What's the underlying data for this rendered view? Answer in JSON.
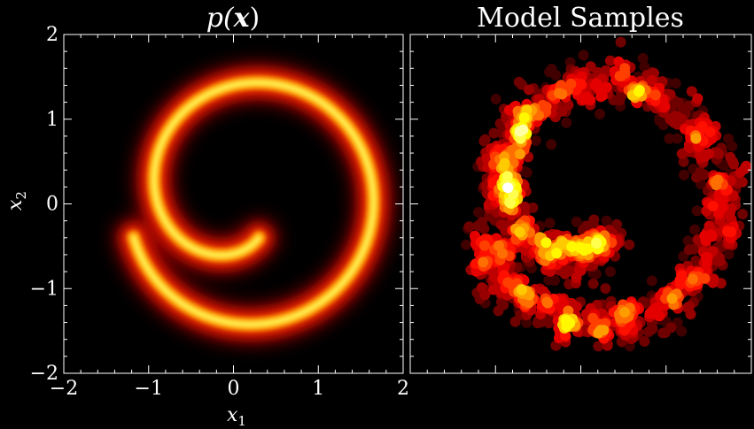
{
  "chart_data": [
    {
      "type": "heatmap",
      "title": "p(x)",
      "title_parts": {
        "fn": "p(",
        "var": "x",
        "close": ")"
      },
      "xlabel": "x1",
      "xlabel_parts": {
        "base": "x",
        "sub": "1"
      },
      "ylabel": "x2",
      "ylabel_parts": {
        "base": "x",
        "sub": "2"
      },
      "xlim": [
        -2,
        2
      ],
      "ylim": [
        -2,
        2
      ],
      "xticks": [
        -2,
        -1,
        0,
        1,
        2
      ],
      "yticks": [
        -2,
        -1,
        0,
        1,
        2
      ],
      "xtick_labels": [
        "−2",
        "−1",
        "0",
        "1",
        "2"
      ],
      "ytick_labels": [
        "−2",
        "−1",
        "0",
        "1",
        "2"
      ],
      "colormap": "hot",
      "grid": false,
      "distribution": {
        "shape": "spiral",
        "start": [
          0.3,
          -0.4
        ],
        "end": [
          0.15,
          1.45
        ],
        "turns": 1.25,
        "center": [
          0.15,
          0.05
        ]
      }
    },
    {
      "type": "scatter",
      "title": "Model Samples",
      "xlim": [
        -2,
        2
      ],
      "ylim": [
        -2,
        2
      ],
      "colormap": "hot",
      "axis_tick_labels": false,
      "grid": false,
      "distribution": {
        "shape": "spiral",
        "start": [
          0.3,
          -0.4
        ],
        "end": [
          0.15,
          1.45
        ],
        "turns": 1.25,
        "center": [
          0.15,
          0.05
        ]
      }
    }
  ],
  "colors": {
    "background": "#000000",
    "axes": "#ffffff",
    "text": "#ffffff"
  }
}
